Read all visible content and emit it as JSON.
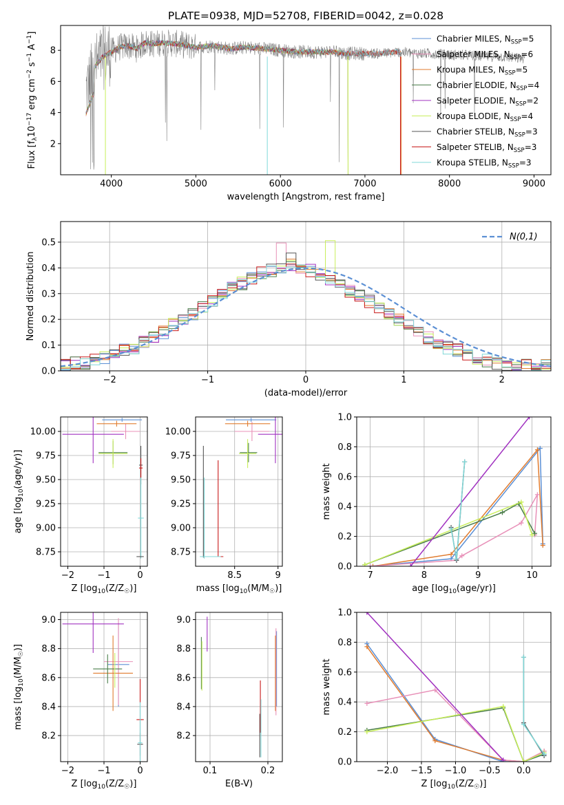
{
  "figure": {
    "title": "PLATE=0938, MJD=52708, FIBERID=0042, z=0.028"
  },
  "colors": {
    "Chabrier MILES": "#5b8fd4",
    "Salpeter MILES": "#e890b8",
    "Kroupa MILES": "#e07b2e",
    "Chabrier ELODIE": "#4a7d4a",
    "Salpeter ELODIE": "#a030c0",
    "Kroupa ELODIE": "#c8ee5a",
    "Chabrier STELIB": "#555555",
    "Salpeter STELIB": "#c81818",
    "Kroupa STELIB": "#7fd8d8",
    "data": "#808080",
    "normal": "#5b8fd4"
  },
  "chart_data": [
    {
      "id": "spectrum",
      "type": "line",
      "xlabel": "wavelength [Angstrom, rest frame]",
      "ylabel_parts": [
        "Flux [f",
        "λ",
        "10",
        "−17",
        " erg cm",
        "−2",
        " s",
        "−1",
        " A",
        "−1",
        "]"
      ],
      "xlim": [
        3400,
        9200
      ],
      "ylim": [
        0,
        9.6
      ],
      "xticks": [
        4000,
        5000,
        6000,
        7000,
        8000,
        9000
      ],
      "yticks": [
        2,
        4,
        6,
        8
      ],
      "legend_position": "upper right",
      "legend": [
        {
          "imf": "Chabrier",
          "lib": "MILES",
          "n": "5",
          "key": "Chabrier MILES"
        },
        {
          "imf": "Salpeter",
          "lib": "MILES",
          "n": "6",
          "key": "Salpeter MILES"
        },
        {
          "imf": "Kroupa",
          "lib": "MILES",
          "n": "5",
          "key": "Kroupa MILES"
        },
        {
          "imf": "Chabrier",
          "lib": "ELODIE",
          "n": "4",
          "key": "Chabrier ELODIE"
        },
        {
          "imf": "Salpeter",
          "lib": "ELODIE",
          "n": "2",
          "key": "Salpeter ELODIE"
        },
        {
          "imf": "Kroupa",
          "lib": "ELODIE",
          "n": "4",
          "key": "Kroupa ELODIE"
        },
        {
          "imf": "Chabrier",
          "lib": "STELIB",
          "n": "3",
          "key": "Chabrier STELIB"
        },
        {
          "imf": "Salpeter",
          "lib": "STELIB",
          "n": "3",
          "key": "Salpeter STELIB"
        },
        {
          "imf": "Kroupa",
          "lib": "STELIB",
          "n": "3",
          "key": "Kroupa STELIB"
        }
      ],
      "ssp_label": "SSP",
      "model_end_wavelengths": {
        "MILES": 7420,
        "ELODIE": 6800,
        "STELIB": 7420
      },
      "continuum": {
        "wavelength": [
          3700,
          3800,
          3900,
          4000,
          4100,
          4200,
          4300,
          4400,
          4500,
          4600,
          4800,
          5000,
          5200,
          5400,
          5600,
          5800,
          6000,
          6200,
          6400,
          6600,
          6800,
          7000,
          7200,
          7400,
          7600,
          7800,
          8000,
          8200,
          8400,
          8600,
          8800,
          8900
        ],
        "flux": [
          5.4,
          6.9,
          7.6,
          7.9,
          8.2,
          8.3,
          8.1,
          8.5,
          8.4,
          8.5,
          8.4,
          8.2,
          8.3,
          8.1,
          8.2,
          8.1,
          8.0,
          7.9,
          7.9,
          7.9,
          7.8,
          7.8,
          7.8,
          7.9,
          7.8,
          7.8,
          7.7,
          7.7,
          7.6,
          7.6,
          7.5,
          7.5
        ]
      }
    },
    {
      "id": "residuals",
      "type": "line",
      "xlabel": "(data-model)/error",
      "ylabel": "Normed distribution",
      "xlim": [
        -2.5,
        2.5
      ],
      "ylim": [
        0,
        0.58
      ],
      "xticks": [
        -2,
        -1,
        0,
        1,
        2
      ],
      "yticks": [
        0.0,
        0.1,
        0.2,
        0.3,
        0.4,
        0.5
      ],
      "grid": true,
      "legend_position": "upper right",
      "legend": [
        "N(0,1)"
      ],
      "bin_width": 0.1,
      "histogram_base": [
        0.02,
        0.03,
        0.03,
        0.04,
        0.05,
        0.06,
        0.08,
        0.09,
        0.11,
        0.13,
        0.15,
        0.18,
        0.2,
        0.22,
        0.25,
        0.27,
        0.3,
        0.32,
        0.34,
        0.36,
        0.38,
        0.39,
        0.4,
        0.41,
        0.4,
        0.39,
        0.37,
        0.35,
        0.33,
        0.31,
        0.29,
        0.27,
        0.25,
        0.22,
        0.2,
        0.18,
        0.15,
        0.13,
        0.11,
        0.09,
        0.08,
        0.06,
        0.05,
        0.04,
        0.03,
        0.02,
        0.02,
        0.02,
        0.02,
        0.02
      ]
    },
    {
      "id": "age_vs_Z",
      "type": "scatter",
      "xlabel": "Z [log10(Z/Z☉)]",
      "xlabel_parts": [
        "Z [log",
        "10",
        "(Z/Z",
        "☉",
        ")]"
      ],
      "ylabel_parts": [
        "age  [log",
        "10",
        "(age/yr)]"
      ],
      "xlim": [
        -2.2,
        0.2
      ],
      "ylim": [
        8.6,
        10.15
      ],
      "xticks": [
        -2,
        -1,
        0
      ],
      "yticks": [
        8.75,
        9.0,
        9.25,
        9.5,
        9.75,
        10.0
      ],
      "ytick_labels": [
        "8.75",
        "9.00",
        "9.25",
        "9.50",
        "9.75",
        "10.00"
      ],
      "grid": true,
      "points": [
        {
          "key": "Chabrier MILES",
          "x": -0.5,
          "xerr": 0.55,
          "y": 10.12,
          "yerr": 0.02
        },
        {
          "key": "Salpeter MILES",
          "x": -0.4,
          "xerr": 0.4,
          "y": 10.0,
          "yerr": 0.08
        },
        {
          "key": "Kroupa MILES",
          "x": -0.65,
          "xerr": 0.55,
          "y": 10.08,
          "yerr": 0.03
        },
        {
          "key": "Chabrier ELODIE",
          "x": -0.75,
          "xerr": 0.4,
          "y": 9.78,
          "yerr": 0.12
        },
        {
          "key": "Salpeter ELODIE",
          "x": -1.3,
          "xerr": 0.85,
          "y": 9.97,
          "yerr": 0.3
        },
        {
          "key": "Kroupa ELODIE",
          "x": -0.75,
          "xerr": 0.4,
          "y": 9.77,
          "yerr": 0.15
        },
        {
          "key": "Chabrier STELIB",
          "x": 0.02,
          "xerr": 0.05,
          "y": 9.65,
          "yerr": 0.2
        },
        {
          "key": "Salpeter STELIB",
          "x": 0.02,
          "xerr": 0.05,
          "y": 9.62,
          "yerr": 0.1
        },
        {
          "key": "Kroupa STELIB",
          "x": 0.02,
          "xerr": 0.08,
          "y": 9.1,
          "yerr": 0.42
        },
        {
          "key": "Chabrier STELIB",
          "x": 0.0,
          "xerr": 0.1,
          "y": 8.7,
          "yerr": 0.0
        }
      ]
    },
    {
      "id": "age_vs_mass",
      "type": "scatter",
      "xlabel_parts": [
        "mass [log",
        "10",
        "(M/M",
        "☉",
        ")]"
      ],
      "xlim": [
        8.05,
        9.05
      ],
      "ylim": [
        8.6,
        10.15
      ],
      "xticks": [
        8.5,
        9.0
      ],
      "yticks": [
        8.75,
        9.0,
        9.25,
        9.5,
        9.75,
        10.0
      ],
      "ytick_labels": [
        "8.75",
        "9.00",
        "9.25",
        "9.50",
        "9.75",
        "10.00"
      ],
      "grid": true,
      "points": [
        {
          "key": "Chabrier MILES",
          "x": 8.69,
          "xerr": 0.29,
          "y": 10.12,
          "yerr": 0.02
        },
        {
          "key": "Salpeter MILES",
          "x": 8.7,
          "xerr": 0.2,
          "y": 10.0,
          "yerr": 0.1
        },
        {
          "key": "Kroupa MILES",
          "x": 8.65,
          "xerr": 0.26,
          "y": 10.08,
          "yerr": 0.03
        },
        {
          "key": "Chabrier ELODIE",
          "x": 8.66,
          "xerr": 0.1,
          "y": 9.78,
          "yerr": 0.1
        },
        {
          "key": "Salpeter ELODIE",
          "x": 8.97,
          "xerr": 0.2,
          "y": 9.97,
          "yerr": 0.3
        },
        {
          "key": "Kroupa ELODIE",
          "x": 8.65,
          "xerr": 0.1,
          "y": 9.77,
          "yerr": 0.15
        },
        {
          "key": "Chabrier STELIB",
          "x": 8.14,
          "xerr": 0.0,
          "y": 9.27,
          "yerr": 0.58
        },
        {
          "key": "Salpeter STELIB",
          "x": 8.31,
          "xerr": 0.0,
          "y": 9.2,
          "yerr": 0.5
        },
        {
          "key": "Kroupa STELIB",
          "x": 8.15,
          "xerr": 0.0,
          "y": 9.1,
          "yerr": 0.42
        },
        {
          "key": "Salpeter STELIB",
          "x": 8.25,
          "xerr": 0.12,
          "y": 8.7,
          "yerr": 0.0
        },
        {
          "key": "Kroupa STELIB",
          "x": 8.22,
          "xerr": 0.12,
          "y": 8.7,
          "yerr": 0.0
        }
      ]
    },
    {
      "id": "weight_vs_age",
      "type": "line",
      "xlabel_parts": [
        "age  [log",
        "10",
        "(age/yr)]"
      ],
      "ylabel": "mass weight",
      "xlim": [
        6.75,
        10.35
      ],
      "ylim": [
        0,
        1.0
      ],
      "xticks": [
        7,
        8,
        9,
        10
      ],
      "yticks": [
        0.0,
        0.2,
        0.4,
        0.6,
        0.8,
        1.0
      ],
      "grid": true,
      "series": [
        {
          "key": "Chabrier MILES",
          "x": [
            7.0,
            8.5,
            10.15,
            10.2
          ],
          "y": [
            0.0,
            0.05,
            0.79,
            0.15
          ]
        },
        {
          "key": "Kroupa MILES",
          "x": [
            7.05,
            8.5,
            10.1,
            10.2
          ],
          "y": [
            0.0,
            0.08,
            0.78,
            0.14
          ]
        },
        {
          "key": "Salpeter MILES",
          "x": [
            7.0,
            8.6,
            8.7,
            9.8,
            10.1,
            10.05
          ],
          "y": [
            0.0,
            0.04,
            0.07,
            0.29,
            0.48,
            0.21
          ]
        },
        {
          "key": "Chabrier ELODIE",
          "x": [
            6.9,
            9.45,
            9.75,
            10.05
          ],
          "y": [
            0.01,
            0.36,
            0.42,
            0.22
          ]
        },
        {
          "key": "Kroupa ELODIE",
          "x": [
            6.9,
            9.8,
            10.0
          ],
          "y": [
            0.01,
            0.43,
            0.21
          ]
        },
        {
          "key": "Salpeter ELODIE",
          "x": [
            7.75,
            9.95
          ],
          "y": [
            0.0,
            1.0
          ]
        },
        {
          "key": "Chabrier STELIB",
          "x": [
            8.5,
            8.6,
            8.75
          ],
          "y": [
            0.26,
            0.04,
            0.7
          ]
        },
        {
          "key": "Kroupa STELIB",
          "x": [
            8.5,
            8.6,
            8.75
          ],
          "y": [
            0.25,
            0.05,
            0.7
          ]
        }
      ]
    },
    {
      "id": "mass_vs_Z",
      "type": "scatter",
      "xlabel_parts": [
        "Z [log",
        "10",
        "(Z/Z",
        "☉",
        ")]"
      ],
      "ylabel_parts": [
        "mass [log",
        "10",
        "(M/M",
        "☉",
        ")]"
      ],
      "xlim": [
        -2.2,
        0.2
      ],
      "ylim": [
        8.02,
        9.05
      ],
      "xticks": [
        -2,
        -1,
        0
      ],
      "yticks": [
        8.2,
        8.4,
        8.6,
        8.8,
        9.0
      ],
      "ytick_labels": [
        "8.2",
        "8.4",
        "8.6",
        "8.8",
        "9.0"
      ],
      "grid": true,
      "points": [
        {
          "key": "Chabrier MILES",
          "x": -0.6,
          "xerr": 0.3,
          "y": 8.69,
          "yerr": 0.29
        },
        {
          "key": "Salpeter MILES",
          "x": -0.6,
          "xerr": 0.4,
          "y": 8.71,
          "yerr": 0.3
        },
        {
          "key": "Kroupa MILES",
          "x": -0.75,
          "xerr": 0.55,
          "y": 8.63,
          "yerr": 0.26
        },
        {
          "key": "Chabrier ELODIE",
          "x": -0.9,
          "xerr": 0.4,
          "y": 8.66,
          "yerr": 0.1
        },
        {
          "key": "Salpeter ELODIE",
          "x": -1.3,
          "xerr": 0.85,
          "y": 8.97,
          "yerr": 0.2
        },
        {
          "key": "Kroupa ELODIE",
          "x": -0.7,
          "xerr": 0.0,
          "y": 8.65,
          "yerr": 0.12
        },
        {
          "key": "Chabrier STELIB",
          "x": 0.0,
          "xerr": 0.08,
          "y": 8.14,
          "yerr": 0.08
        },
        {
          "key": "Salpeter STELIB",
          "x": 0.0,
          "xerr": 0.1,
          "y": 8.31,
          "yerr": 0.28
        },
        {
          "key": "Kroupa STELIB",
          "x": 0.0,
          "xerr": 0.06,
          "y": 8.15,
          "yerr": 0.28
        }
      ]
    },
    {
      "id": "mass_vs_ebv",
      "type": "scatter",
      "xlabel": "E(B-V)",
      "xlim": [
        0.075,
        0.225
      ],
      "ylim": [
        8.02,
        9.05
      ],
      "xticks": [
        0.1,
        0.2
      ],
      "yticks": [
        8.2,
        8.4,
        8.6,
        8.8,
        9.0
      ],
      "ytick_labels": [
        "8.2",
        "8.4",
        "8.6",
        "8.8",
        "9.0"
      ],
      "grid": true,
      "points": [
        {
          "key": "Chabrier MILES",
          "x": 0.215,
          "xerr": 0,
          "y": 8.66,
          "yerr": 0.26
        },
        {
          "key": "Salpeter MILES",
          "x": 0.214,
          "xerr": 0,
          "y": 8.64,
          "yerr": 0.3
        },
        {
          "key": "Kroupa MILES",
          "x": 0.213,
          "xerr": 0,
          "y": 8.63,
          "yerr": 0.26
        },
        {
          "key": "Chabrier ELODIE",
          "x": 0.085,
          "xerr": 0,
          "y": 8.7,
          "yerr": 0.18
        },
        {
          "key": "Salpeter ELODIE",
          "x": 0.095,
          "xerr": 0,
          "y": 8.9,
          "yerr": 0.12
        },
        {
          "key": "Kroupa ELODIE",
          "x": 0.086,
          "xerr": 0,
          "y": 8.68,
          "yerr": 0.17
        },
        {
          "key": "Chabrier STELIB",
          "x": 0.186,
          "xerr": 0,
          "y": 8.2,
          "yerr": 0.15
        },
        {
          "key": "Salpeter STELIB",
          "x": 0.187,
          "xerr": 0,
          "y": 8.4,
          "yerr": 0.18
        },
        {
          "key": "Kroupa STELIB",
          "x": 0.188,
          "xerr": 0,
          "y": 8.25,
          "yerr": 0.2
        }
      ]
    },
    {
      "id": "weight_vs_Z",
      "type": "line",
      "xlabel_parts": [
        "Z [log",
        "10",
        "(Z/Z",
        "☉",
        ")]"
      ],
      "ylabel": "mass weight",
      "xlim": [
        -2.45,
        0.4
      ],
      "ylim": [
        0,
        1.0
      ],
      "xticks": [
        -2.0,
        -1.5,
        -1.0,
        -0.5,
        0.0
      ],
      "xtick_labels": [
        "−2.0",
        "−1.5",
        "−1.0",
        "−0.5",
        "0.0"
      ],
      "yticks": [
        0.0,
        0.2,
        0.4,
        0.6,
        0.8,
        1.0
      ],
      "grid": true,
      "series": [
        {
          "key": "Chabrier MILES",
          "x": [
            -2.3,
            -1.3,
            -0.3,
            0.0,
            0.3
          ],
          "y": [
            0.79,
            0.15,
            0.0,
            0.0,
            0.05
          ]
        },
        {
          "key": "Kroupa MILES",
          "x": [
            -2.3,
            -1.3,
            -0.3,
            0.0,
            0.3
          ],
          "y": [
            0.77,
            0.14,
            0.01,
            0.0,
            0.07
          ]
        },
        {
          "key": "Salpeter MILES",
          "x": [
            -2.3,
            -1.3,
            -0.3,
            0.0,
            0.3
          ],
          "y": [
            0.39,
            0.48,
            0.01,
            0.0,
            0.07
          ]
        },
        {
          "key": "Chabrier ELODIE",
          "x": [
            -2.3,
            -0.3,
            0.0,
            0.3
          ],
          "y": [
            0.21,
            0.36,
            0.0,
            0.05
          ]
        },
        {
          "key": "Kroupa ELODIE",
          "x": [
            -2.3,
            -0.3,
            0.0,
            0.3
          ],
          "y": [
            0.2,
            0.37,
            0.0,
            0.06
          ]
        },
        {
          "key": "Salpeter ELODIE",
          "x": [
            -2.3,
            -0.3
          ],
          "y": [
            1.0,
            0.01
          ]
        },
        {
          "key": "Chabrier STELIB",
          "x": [
            0.0,
            0.0,
            0.3
          ],
          "y": [
            0.7,
            0.26,
            0.04
          ]
        },
        {
          "key": "Kroupa STELIB",
          "x": [
            0.0,
            0.0,
            0.3
          ],
          "y": [
            0.7,
            0.25,
            0.05
          ]
        }
      ]
    }
  ]
}
